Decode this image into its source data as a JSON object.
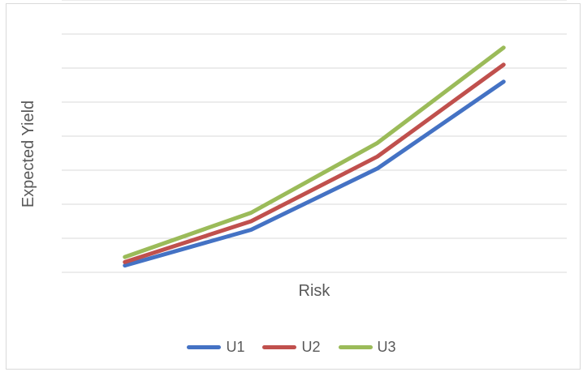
{
  "chart_data": {
    "type": "line",
    "title": "",
    "xlabel": "Risk",
    "ylabel": "Expected Yield",
    "x": [
      1,
      2,
      3,
      4
    ],
    "ylim": [
      0,
      8
    ],
    "grid": true,
    "legend": "bottom",
    "series": [
      {
        "name": "U1",
        "color": "#4472C4",
        "values": [
          0.2,
          1.25,
          3.05,
          5.6
        ]
      },
      {
        "name": "U2",
        "color": "#C0504D",
        "values": [
          0.3,
          1.5,
          3.4,
          6.1
        ]
      },
      {
        "name": "U3",
        "color": "#9BBB59",
        "values": [
          0.45,
          1.75,
          3.8,
          6.6
        ]
      }
    ]
  }
}
